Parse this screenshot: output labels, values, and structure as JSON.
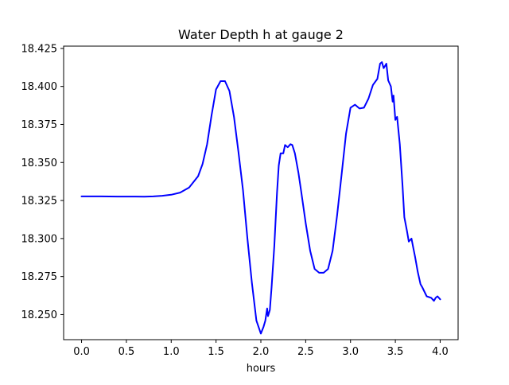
{
  "chart_data": {
    "type": "line",
    "title": "Water Depth h at gauge 2",
    "xlabel": "hours",
    "ylabel": "",
    "xlim": [
      -0.2,
      4.2
    ],
    "ylim": [
      18.2335,
      18.4265
    ],
    "xticks": [
      0.0,
      0.5,
      1.0,
      1.5,
      2.0,
      2.5,
      3.0,
      3.5,
      4.0
    ],
    "xtick_labels": [
      "0.0",
      "0.5",
      "1.0",
      "1.5",
      "2.0",
      "2.5",
      "3.0",
      "3.5",
      "4.0"
    ],
    "yticks": [
      18.25,
      18.275,
      18.3,
      18.325,
      18.35,
      18.375,
      18.4,
      18.425
    ],
    "ytick_labels": [
      "18.250",
      "18.275",
      "18.300",
      "18.325",
      "18.350",
      "18.375",
      "18.400",
      "18.425"
    ],
    "grid": false,
    "series": [
      {
        "color": "#0000ff",
        "x": [
          0.0,
          0.2,
          0.4,
          0.6,
          0.7,
          0.8,
          0.9,
          1.0,
          1.1,
          1.2,
          1.3,
          1.35,
          1.4,
          1.45,
          1.5,
          1.55,
          1.6,
          1.65,
          1.7,
          1.75,
          1.8,
          1.85,
          1.9,
          1.95,
          2.0,
          2.03,
          2.05,
          2.07,
          2.08,
          2.1,
          2.12,
          2.15,
          2.18,
          2.2,
          2.22,
          2.25,
          2.27,
          2.3,
          2.33,
          2.35,
          2.38,
          2.42,
          2.45,
          2.5,
          2.55,
          2.6,
          2.65,
          2.7,
          2.75,
          2.8,
          2.85,
          2.9,
          2.95,
          3.0,
          3.05,
          3.1,
          3.15,
          3.2,
          3.25,
          3.3,
          3.33,
          3.35,
          3.37,
          3.4,
          3.42,
          3.45,
          3.47,
          3.48,
          3.5,
          3.52,
          3.55,
          3.58,
          3.6,
          3.63,
          3.65,
          3.68,
          3.7,
          3.72,
          3.75,
          3.78,
          3.8,
          3.85,
          3.9,
          3.93,
          3.95,
          3.97,
          4.0
        ],
        "y": [
          18.3277,
          18.3277,
          18.3276,
          18.3276,
          18.3275,
          18.3277,
          18.3281,
          18.3288,
          18.3302,
          18.3335,
          18.341,
          18.349,
          18.362,
          18.381,
          18.398,
          18.4035,
          18.4035,
          18.397,
          18.38,
          18.357,
          18.332,
          18.3,
          18.271,
          18.246,
          18.2375,
          18.242,
          18.246,
          18.254,
          18.249,
          18.253,
          18.268,
          18.295,
          18.33,
          18.348,
          18.356,
          18.356,
          18.3615,
          18.36,
          18.362,
          18.3615,
          18.356,
          18.343,
          18.331,
          18.31,
          18.292,
          18.28,
          18.2775,
          18.2775,
          18.28,
          18.292,
          18.315,
          18.342,
          18.369,
          18.386,
          18.388,
          18.3855,
          18.386,
          18.392,
          18.401,
          18.405,
          18.415,
          18.416,
          18.412,
          18.415,
          18.404,
          18.4,
          18.39,
          18.394,
          18.378,
          18.38,
          18.362,
          18.335,
          18.314,
          18.305,
          18.298,
          18.3,
          18.294,
          18.288,
          18.278,
          18.27,
          18.268,
          18.262,
          18.261,
          18.259,
          18.261,
          18.262,
          18.26
        ]
      }
    ]
  }
}
